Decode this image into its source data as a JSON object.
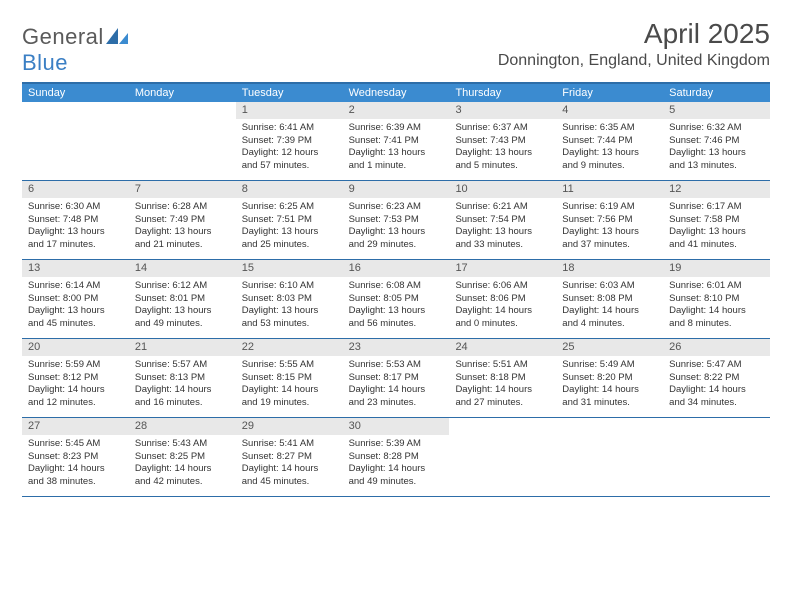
{
  "logo": {
    "word1": "General",
    "word2": "Blue"
  },
  "title": "April 2025",
  "location": "Donnington, England, United Kingdom",
  "colors": {
    "header_bar": "#3b8bd0",
    "border": "#2d6da8",
    "daynum_bg": "#e8e8e8",
    "text": "#333333",
    "logo_gray": "#5a5a5a",
    "logo_blue": "#3b7fc4"
  },
  "weekdays": [
    "Sunday",
    "Monday",
    "Tuesday",
    "Wednesday",
    "Thursday",
    "Friday",
    "Saturday"
  ],
  "weeks": [
    [
      null,
      null,
      {
        "n": "1",
        "sr": "Sunrise: 6:41 AM",
        "ss": "Sunset: 7:39 PM",
        "d1": "Daylight: 12 hours",
        "d2": "and 57 minutes."
      },
      {
        "n": "2",
        "sr": "Sunrise: 6:39 AM",
        "ss": "Sunset: 7:41 PM",
        "d1": "Daylight: 13 hours",
        "d2": "and 1 minute."
      },
      {
        "n": "3",
        "sr": "Sunrise: 6:37 AM",
        "ss": "Sunset: 7:43 PM",
        "d1": "Daylight: 13 hours",
        "d2": "and 5 minutes."
      },
      {
        "n": "4",
        "sr": "Sunrise: 6:35 AM",
        "ss": "Sunset: 7:44 PM",
        "d1": "Daylight: 13 hours",
        "d2": "and 9 minutes."
      },
      {
        "n": "5",
        "sr": "Sunrise: 6:32 AM",
        "ss": "Sunset: 7:46 PM",
        "d1": "Daylight: 13 hours",
        "d2": "and 13 minutes."
      }
    ],
    [
      {
        "n": "6",
        "sr": "Sunrise: 6:30 AM",
        "ss": "Sunset: 7:48 PM",
        "d1": "Daylight: 13 hours",
        "d2": "and 17 minutes."
      },
      {
        "n": "7",
        "sr": "Sunrise: 6:28 AM",
        "ss": "Sunset: 7:49 PM",
        "d1": "Daylight: 13 hours",
        "d2": "and 21 minutes."
      },
      {
        "n": "8",
        "sr": "Sunrise: 6:25 AM",
        "ss": "Sunset: 7:51 PM",
        "d1": "Daylight: 13 hours",
        "d2": "and 25 minutes."
      },
      {
        "n": "9",
        "sr": "Sunrise: 6:23 AM",
        "ss": "Sunset: 7:53 PM",
        "d1": "Daylight: 13 hours",
        "d2": "and 29 minutes."
      },
      {
        "n": "10",
        "sr": "Sunrise: 6:21 AM",
        "ss": "Sunset: 7:54 PM",
        "d1": "Daylight: 13 hours",
        "d2": "and 33 minutes."
      },
      {
        "n": "11",
        "sr": "Sunrise: 6:19 AM",
        "ss": "Sunset: 7:56 PM",
        "d1": "Daylight: 13 hours",
        "d2": "and 37 minutes."
      },
      {
        "n": "12",
        "sr": "Sunrise: 6:17 AM",
        "ss": "Sunset: 7:58 PM",
        "d1": "Daylight: 13 hours",
        "d2": "and 41 minutes."
      }
    ],
    [
      {
        "n": "13",
        "sr": "Sunrise: 6:14 AM",
        "ss": "Sunset: 8:00 PM",
        "d1": "Daylight: 13 hours",
        "d2": "and 45 minutes."
      },
      {
        "n": "14",
        "sr": "Sunrise: 6:12 AM",
        "ss": "Sunset: 8:01 PM",
        "d1": "Daylight: 13 hours",
        "d2": "and 49 minutes."
      },
      {
        "n": "15",
        "sr": "Sunrise: 6:10 AM",
        "ss": "Sunset: 8:03 PM",
        "d1": "Daylight: 13 hours",
        "d2": "and 53 minutes."
      },
      {
        "n": "16",
        "sr": "Sunrise: 6:08 AM",
        "ss": "Sunset: 8:05 PM",
        "d1": "Daylight: 13 hours",
        "d2": "and 56 minutes."
      },
      {
        "n": "17",
        "sr": "Sunrise: 6:06 AM",
        "ss": "Sunset: 8:06 PM",
        "d1": "Daylight: 14 hours",
        "d2": "and 0 minutes."
      },
      {
        "n": "18",
        "sr": "Sunrise: 6:03 AM",
        "ss": "Sunset: 8:08 PM",
        "d1": "Daylight: 14 hours",
        "d2": "and 4 minutes."
      },
      {
        "n": "19",
        "sr": "Sunrise: 6:01 AM",
        "ss": "Sunset: 8:10 PM",
        "d1": "Daylight: 14 hours",
        "d2": "and 8 minutes."
      }
    ],
    [
      {
        "n": "20",
        "sr": "Sunrise: 5:59 AM",
        "ss": "Sunset: 8:12 PM",
        "d1": "Daylight: 14 hours",
        "d2": "and 12 minutes."
      },
      {
        "n": "21",
        "sr": "Sunrise: 5:57 AM",
        "ss": "Sunset: 8:13 PM",
        "d1": "Daylight: 14 hours",
        "d2": "and 16 minutes."
      },
      {
        "n": "22",
        "sr": "Sunrise: 5:55 AM",
        "ss": "Sunset: 8:15 PM",
        "d1": "Daylight: 14 hours",
        "d2": "and 19 minutes."
      },
      {
        "n": "23",
        "sr": "Sunrise: 5:53 AM",
        "ss": "Sunset: 8:17 PM",
        "d1": "Daylight: 14 hours",
        "d2": "and 23 minutes."
      },
      {
        "n": "24",
        "sr": "Sunrise: 5:51 AM",
        "ss": "Sunset: 8:18 PM",
        "d1": "Daylight: 14 hours",
        "d2": "and 27 minutes."
      },
      {
        "n": "25",
        "sr": "Sunrise: 5:49 AM",
        "ss": "Sunset: 8:20 PM",
        "d1": "Daylight: 14 hours",
        "d2": "and 31 minutes."
      },
      {
        "n": "26",
        "sr": "Sunrise: 5:47 AM",
        "ss": "Sunset: 8:22 PM",
        "d1": "Daylight: 14 hours",
        "d2": "and 34 minutes."
      }
    ],
    [
      {
        "n": "27",
        "sr": "Sunrise: 5:45 AM",
        "ss": "Sunset: 8:23 PM",
        "d1": "Daylight: 14 hours",
        "d2": "and 38 minutes."
      },
      {
        "n": "28",
        "sr": "Sunrise: 5:43 AM",
        "ss": "Sunset: 8:25 PM",
        "d1": "Daylight: 14 hours",
        "d2": "and 42 minutes."
      },
      {
        "n": "29",
        "sr": "Sunrise: 5:41 AM",
        "ss": "Sunset: 8:27 PM",
        "d1": "Daylight: 14 hours",
        "d2": "and 45 minutes."
      },
      {
        "n": "30",
        "sr": "Sunrise: 5:39 AM",
        "ss": "Sunset: 8:28 PM",
        "d1": "Daylight: 14 hours",
        "d2": "and 49 minutes."
      },
      null,
      null,
      null
    ]
  ]
}
